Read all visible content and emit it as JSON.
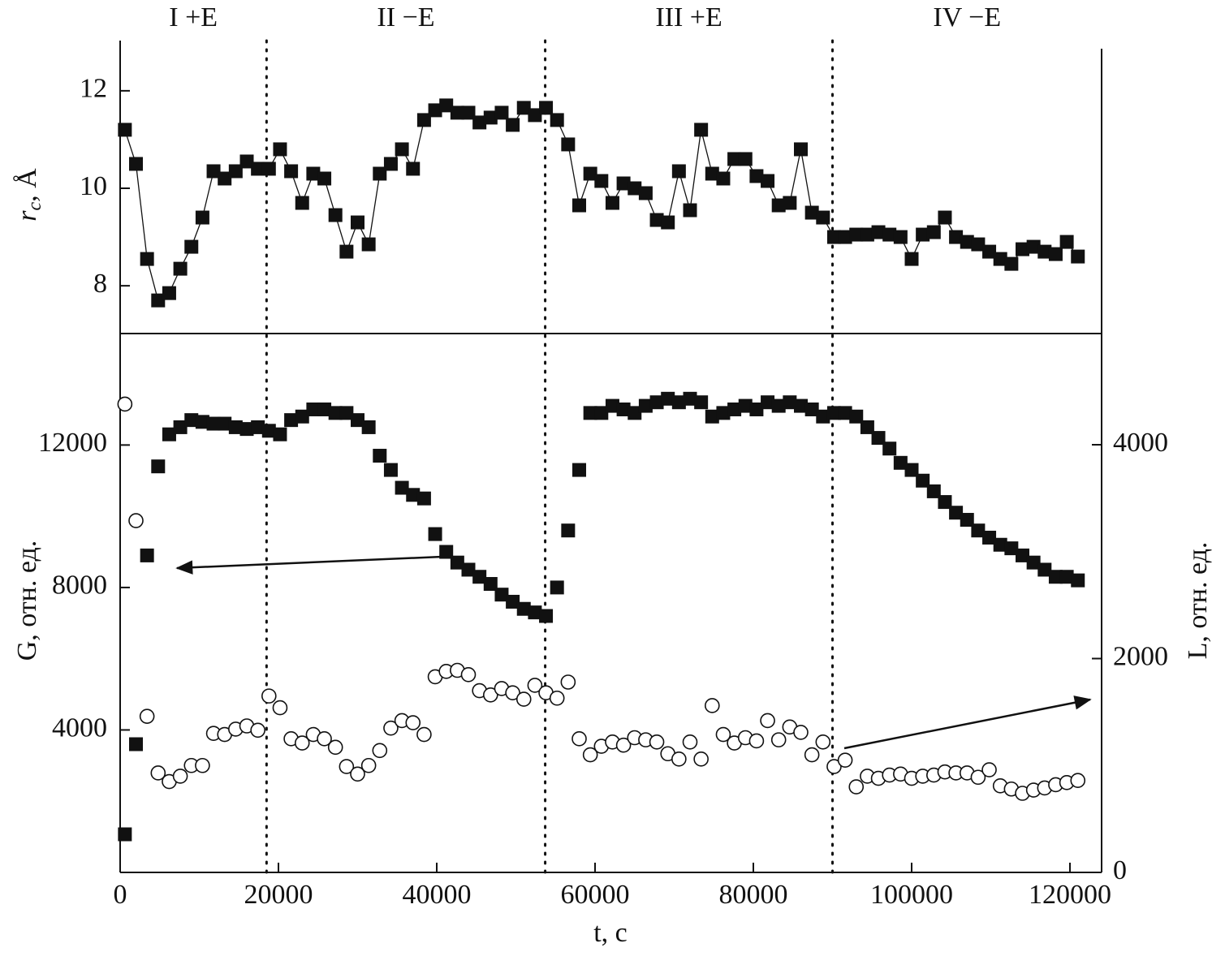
{
  "chart_data": [
    {
      "type": "scatter",
      "line": true,
      "ylabel_symbol": "r",
      "ylabel_subscript": "c",
      "ylabel_unit": ", Å",
      "xlim": [
        0,
        124000
      ],
      "ylim": [
        7.02,
        13.03
      ],
      "yticks": [
        8,
        10,
        12
      ],
      "vlines": [
        18500,
        53700,
        90000
      ],
      "phases": [
        "I +E",
        "II −E",
        "III +E",
        "IV −E"
      ],
      "x": [
        600,
        2000,
        3400,
        4800,
        6200,
        7600,
        9000,
        10400,
        11800,
        13200,
        14600,
        16000,
        17400,
        18800,
        20200,
        21600,
        23000,
        24400,
        25800,
        27200,
        28600,
        30000,
        31400,
        32800,
        34200,
        35600,
        37000,
        38400,
        39800,
        41200,
        42600,
        44000,
        45400,
        46800,
        48200,
        49600,
        51000,
        52400,
        53800,
        55200,
        56600,
        58000,
        59400,
        60800,
        62200,
        63600,
        65000,
        66400,
        67800,
        69200,
        70600,
        72000,
        73400,
        74800,
        76200,
        77600,
        79000,
        80400,
        81800,
        83200,
        84600,
        86000,
        87400,
        88800,
        90200,
        91600,
        93000,
        94400,
        95800,
        97200,
        98600,
        100000,
        101400,
        102800,
        104200,
        105600,
        107000,
        108400,
        109800,
        111200,
        112600,
        114000,
        115400,
        116800,
        118200,
        119600,
        121000
      ],
      "series": [
        {
          "marker": "square",
          "color": "#111111",
          "values": [
            11.2,
            10.5,
            8.55,
            7.7,
            7.85,
            8.35,
            8.8,
            9.4,
            10.35,
            10.2,
            10.35,
            10.55,
            10.4,
            10.4,
            10.8,
            10.35,
            9.7,
            10.3,
            10.2,
            9.45,
            8.7,
            9.3,
            8.85,
            10.3,
            10.5,
            10.8,
            10.4,
            11.4,
            11.6,
            11.7,
            11.55,
            11.55,
            11.35,
            11.45,
            11.55,
            11.3,
            11.65,
            11.5,
            11.65,
            11.4,
            10.9,
            9.65,
            10.3,
            10.15,
            9.7,
            10.1,
            10.0,
            9.9,
            9.35,
            9.3,
            10.35,
            9.55,
            11.2,
            10.3,
            10.2,
            10.6,
            10.6,
            10.25,
            10.15,
            9.65,
            9.7,
            10.8,
            9.5,
            9.4,
            9.0,
            9.0,
            9.05,
            9.05,
            9.1,
            9.05,
            9.0,
            8.55,
            9.05,
            9.1,
            9.4,
            9.0,
            8.9,
            8.85,
            8.7,
            8.55,
            8.45,
            8.75,
            8.8,
            8.7,
            8.65,
            8.9,
            8.6
          ]
        }
      ]
    },
    {
      "type": "scatter",
      "xlabel": "t, с",
      "ylabel": "G, отн. ед.",
      "y2label": "L, отн. ед.",
      "xlim": [
        0,
        124000
      ],
      "xticks": [
        0,
        20000,
        40000,
        60000,
        80000,
        100000,
        120000
      ],
      "ylim": [
        0,
        15130
      ],
      "yticks": [
        4000,
        8000,
        12000
      ],
      "y2lim": [
        0,
        5040
      ],
      "y2ticks": [
        0,
        2000,
        4000
      ],
      "x": [
        600,
        2000,
        3400,
        4800,
        6200,
        7600,
        9000,
        10400,
        11800,
        13200,
        14600,
        16000,
        17400,
        18800,
        20200,
        21600,
        23000,
        24400,
        25800,
        27200,
        28600,
        30000,
        31400,
        32800,
        34200,
        35600,
        37000,
        38400,
        39800,
        41200,
        42600,
        44000,
        45400,
        46800,
        48200,
        49600,
        51000,
        52400,
        53800,
        55200,
        56600,
        58000,
        59400,
        60800,
        62200,
        63600,
        65000,
        66400,
        67800,
        69200,
        70600,
        72000,
        73400,
        74800,
        76200,
        77600,
        79000,
        80400,
        81800,
        83200,
        84600,
        86000,
        87400,
        88800,
        90200,
        91600,
        93000,
        94400,
        95800,
        97200,
        98600,
        100000,
        101400,
        102800,
        104200,
        105600,
        107000,
        108400,
        109800,
        111200,
        112600,
        114000,
        115400,
        116800,
        118200,
        119600,
        121000
      ],
      "series": [
        {
          "marker": "square",
          "color": "#111111",
          "values": [
            1070,
            3600,
            8900,
            11400,
            12300,
            12500,
            12700,
            12650,
            12600,
            12600,
            12500,
            12450,
            12500,
            12400,
            12300,
            12700,
            12800,
            13000,
            13000,
            12900,
            12900,
            12700,
            12500,
            11700,
            11300,
            10800,
            10600,
            10500,
            9500,
            9000,
            8700,
            8500,
            8300,
            8100,
            7800,
            7600,
            7400,
            7300,
            7200,
            8000,
            9600,
            11300,
            12900,
            12900,
            13100,
            13000,
            12900,
            13100,
            13200,
            13300,
            13200,
            13300,
            13200,
            12800,
            12900,
            13000,
            13100,
            13000,
            13200,
            13100,
            13200,
            13100,
            13000,
            12800,
            12900,
            12900,
            12800,
            12500,
            12200,
            11900,
            11500,
            11300,
            11000,
            10700,
            10400,
            10100,
            9900,
            9600,
            9400,
            9200,
            9100,
            8900,
            8700,
            8500,
            8300,
            8300,
            8200
          ]
        },
        {
          "marker": "circle",
          "color": "#111111",
          "axis": "y2",
          "values": [
            4380,
            3290,
            1460,
            930,
            850,
            900,
            1000,
            1000,
            1300,
            1290,
            1340,
            1370,
            1330,
            1650,
            1540,
            1250,
            1210,
            1290,
            1250,
            1170,
            990,
            920,
            1000,
            1140,
            1350,
            1420,
            1400,
            1290,
            1830,
            1880,
            1890,
            1850,
            1700,
            1660,
            1720,
            1680,
            1620,
            1750,
            1680,
            1630,
            1780,
            1250,
            1100,
            1180,
            1220,
            1190,
            1260,
            1240,
            1220,
            1110,
            1060,
            1220,
            1060,
            1560,
            1290,
            1210,
            1260,
            1230,
            1420,
            1240,
            1360,
            1310,
            1100,
            1220,
            990,
            1050,
            800,
            900,
            880,
            910,
            920,
            880,
            900,
            910,
            940,
            930,
            930,
            890,
            960,
            810,
            780,
            740,
            770,
            790,
            820,
            840,
            860
          ]
        }
      ]
    }
  ]
}
